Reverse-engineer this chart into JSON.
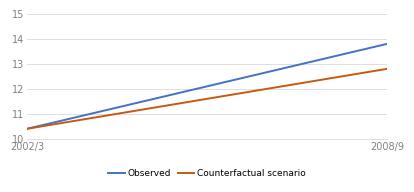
{
  "x_labels": [
    "2002/3",
    "2008/9"
  ],
  "observed_values": [
    10.4,
    13.8
  ],
  "counterfactual_values": [
    10.4,
    12.8
  ],
  "observed_color": "#4472C4",
  "counterfactual_color": "#C55A11",
  "ylim": [
    10,
    15
  ],
  "yticks": [
    10,
    11,
    12,
    13,
    14,
    15
  ],
  "legend_labels": [
    "Observed",
    "Counterfactual scenario"
  ],
  "background_color": "#FFFFFF",
  "grid_color": "#DEDEDE",
  "line_width": 1.4,
  "tick_color": "#808080",
  "tick_fontsize": 7.0,
  "legend_fontsize": 6.5
}
